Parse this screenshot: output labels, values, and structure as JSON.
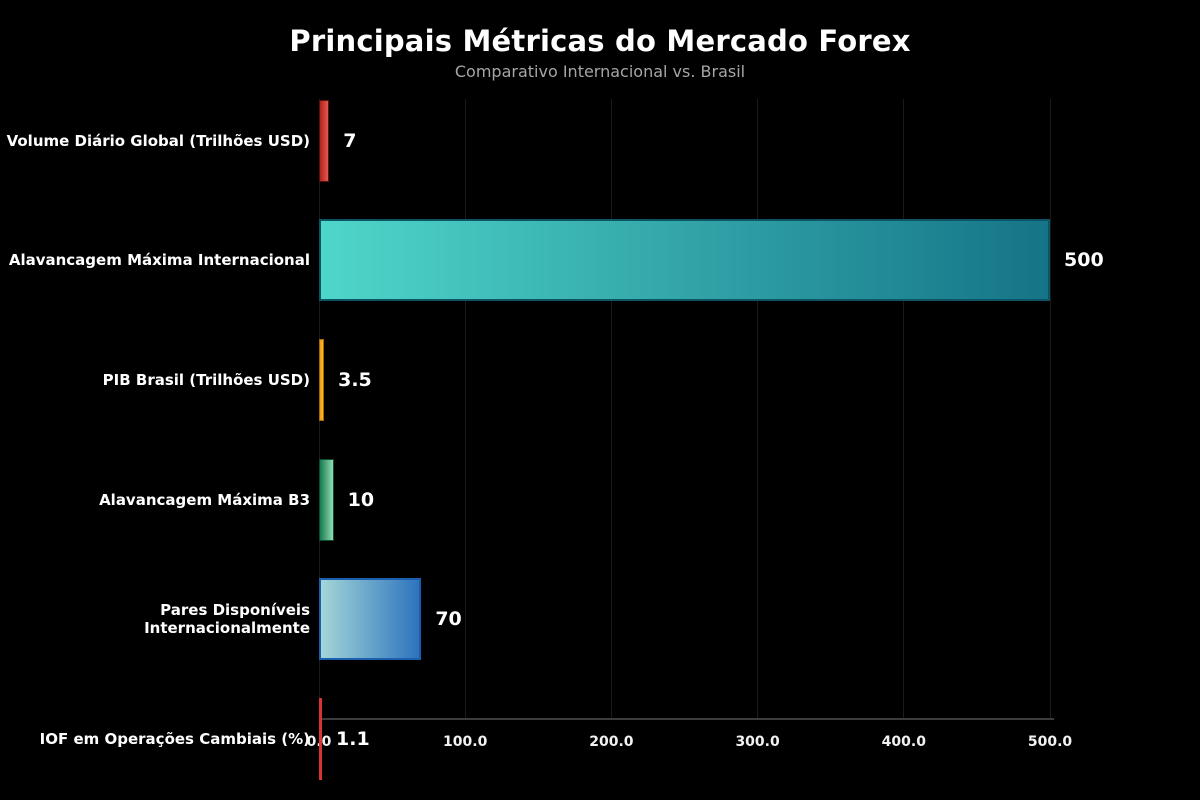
{
  "chart_data": {
    "type": "bar",
    "orientation": "horizontal",
    "title": "Principais Métricas do Mercado Forex",
    "subtitle": "Comparativo Internacional vs. Brasil",
    "categories": [
      "Volume Diário Global (Trilhões USD)",
      "Alavancagem Máxima Internacional",
      "PIB Brasil (Trilhões USD)",
      "Alavancagem Máxima B3",
      "Pares Disponíveis Internacionalmente",
      "IOF em Operações Cambiais (%)"
    ],
    "values": [
      7,
      500,
      3.5,
      10,
      70,
      1.1
    ],
    "value_labels": [
      "7",
      "500",
      "3.5",
      "10",
      "70",
      "1.1"
    ],
    "bar_colors": [
      {
        "start": "#ad241f",
        "end": "#e8584e",
        "border": "#5c100d"
      },
      {
        "start": "#4fd6ca",
        "end": "#157487",
        "border": "#0d5565"
      },
      {
        "start": "#ef9a12",
        "end": "#f9b833",
        "border": "#a36a00"
      },
      {
        "start": "#157a4e",
        "end": "#93dcb4",
        "border": "#0b4d2f"
      },
      {
        "start": "#a3d6d8",
        "end": "#2d74bd",
        "border": "#1c5fae"
      },
      {
        "start": "#d93430",
        "end": "#d93430",
        "border": "#d93430"
      }
    ],
    "xlim": [
      0,
      500
    ],
    "x_ticks": [
      0,
      100,
      200,
      300,
      400,
      500
    ],
    "x_tick_labels": [
      "0.0",
      "100.0",
      "200.0",
      "300.0",
      "400.0",
      "500.0"
    ],
    "grid": true,
    "legend": "none",
    "background_color": "#000000",
    "text_color": "#ffffff",
    "subtitle_color": "#a6a6a6"
  }
}
